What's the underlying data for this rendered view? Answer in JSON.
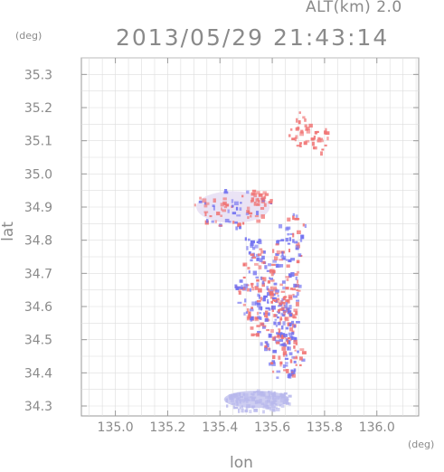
{
  "header": {
    "altitude_label": "ALT(km) 2.0",
    "timestamp": "2013/05/29 21:43:14",
    "y_unit": "(deg)",
    "x_unit": "(deg)"
  },
  "chart_data": {
    "type": "scatter",
    "xlabel": "lon",
    "ylabel": "lat",
    "xlim": [
      134.87,
      136.16
    ],
    "ylim": [
      34.27,
      35.35
    ],
    "x_ticks": [
      "135.0",
      "135.2",
      "135.4",
      "135.6",
      "135.8",
      "136.0"
    ],
    "x_tick_values": [
      135.0,
      135.2,
      135.4,
      135.6,
      135.8,
      136.0
    ],
    "y_ticks": [
      "34.3",
      "34.4",
      "34.5",
      "34.6",
      "34.7",
      "34.8",
      "34.9",
      "35.0",
      "35.1",
      "35.2",
      "35.3"
    ],
    "y_tick_values": [
      34.3,
      34.4,
      34.5,
      34.6,
      34.7,
      34.8,
      34.9,
      35.0,
      35.1,
      35.2,
      35.3
    ],
    "grid": true,
    "colors": {
      "positive": "#f07070",
      "negative": "#7070f0",
      "weak_negative": "#b8b8ec",
      "axis": "#999999",
      "grid": "#dddddd"
    },
    "clusters": [
      {
        "name": "north-echo-a",
        "lon": 135.7,
        "lat": 35.14,
        "polarity": "positive"
      },
      {
        "name": "north-echo-b",
        "lon": 135.78,
        "lat": 35.11,
        "polarity": "positive"
      },
      {
        "name": "northwest-band",
        "lon": 135.45,
        "lat": 34.9,
        "polarity": "mixed"
      },
      {
        "name": "northwest-tip",
        "lon": 135.55,
        "lat": 34.93,
        "polarity": "positive"
      },
      {
        "name": "west-small",
        "lon": 135.52,
        "lat": 34.78,
        "polarity": "negative"
      },
      {
        "name": "center-north",
        "lon": 135.67,
        "lat": 34.81,
        "polarity": "mixed"
      },
      {
        "name": "center-main",
        "lon": 135.58,
        "lat": 34.66,
        "polarity": "mixed"
      },
      {
        "name": "center-mid",
        "lon": 135.6,
        "lat": 34.56,
        "polarity": "mixed"
      },
      {
        "name": "center-south",
        "lon": 135.64,
        "lat": 34.46,
        "polarity": "mixed"
      },
      {
        "name": "south-blob",
        "lon": 135.54,
        "lat": 34.32,
        "polarity": "weak-negative"
      }
    ]
  }
}
